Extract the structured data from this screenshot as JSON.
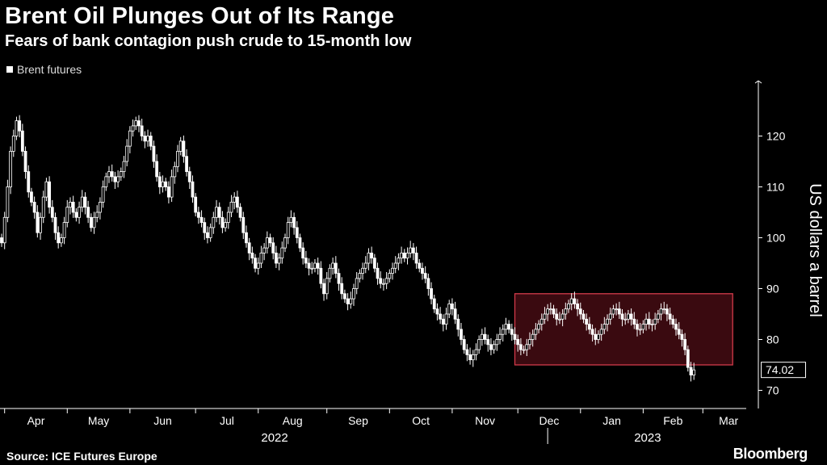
{
  "header": {
    "title": "Brent Oil Plunges Out of Its Range",
    "subtitle": "Fears of bank contagion push crude to 15-month low"
  },
  "footer": {
    "source": "Source: ICE Futures Europe",
    "brand": "Bloomberg"
  },
  "colors": {
    "background": "#000000",
    "candle": "#ffffff",
    "range_fill": "#3a0a10",
    "range_border": "#d23a4a"
  },
  "chart_data": {
    "type": "line",
    "title": "Brent Oil Plunges Out of Its Range",
    "subtitle": "Fears of bank contagion push crude to 15-month low",
    "legend": [
      "Brent futures"
    ],
    "legend_placement": "top-left",
    "ylabel": "US dollars a barrel",
    "y_axis_side": "right",
    "ylim": [
      66,
      130
    ],
    "yticks": [
      70,
      80,
      90,
      100,
      110,
      120
    ],
    "grid": false,
    "months": [
      {
        "label": "Apr",
        "start": 1
      },
      {
        "label": "May",
        "start": 22
      },
      {
        "label": "Jun",
        "start": 43
      },
      {
        "label": "Jul",
        "start": 65
      },
      {
        "label": "Aug",
        "start": 86
      },
      {
        "label": "Sep",
        "start": 109
      },
      {
        "label": "Oct",
        "start": 130
      },
      {
        "label": "Nov",
        "start": 151
      },
      {
        "label": "Dec",
        "start": 173
      },
      {
        "label": "Jan",
        "start": 194
      },
      {
        "label": "Feb",
        "start": 215
      },
      {
        "label": "Mar",
        "start": 235
      }
    ],
    "years": [
      {
        "label": "2022",
        "from": 0,
        "to": 183
      },
      {
        "label": "2023",
        "from": 183,
        "to": 250
      }
    ],
    "series": [
      {
        "name": "Brent futures",
        "chart_style": "candlestick",
        "x_index_start": 0,
        "close": [
          99,
          104,
          110,
          117,
          120,
          123,
          121,
          117,
          113,
          109,
          107,
          105,
          101,
          104,
          108,
          111,
          106,
          104,
          101,
          99,
          100,
          103,
          106,
          107,
          105,
          104,
          106,
          108,
          106,
          104,
          102,
          104,
          105,
          107,
          110,
          112,
          113,
          112,
          111,
          112,
          113,
          115,
          118,
          121,
          122,
          123,
          122,
          120,
          119,
          120,
          118,
          115,
          112,
          110,
          111,
          110,
          108,
          112,
          114,
          117,
          119,
          116,
          113,
          111,
          108,
          105,
          104,
          103,
          101,
          100,
          102,
          104,
          106,
          104,
          102,
          103,
          105,
          107,
          108,
          106,
          104,
          101,
          99,
          97,
          96,
          94,
          95,
          97,
          98,
          100,
          99,
          97,
          95,
          96,
          98,
          100,
          103,
          104,
          102,
          100,
          98,
          96,
          95,
          94,
          94,
          95,
          94,
          91,
          89,
          92,
          94,
          95,
          93,
          91,
          89,
          88,
          87,
          88,
          90,
          92,
          93,
          94,
          95,
          97,
          96,
          94,
          92,
          91,
          91,
          92,
          93,
          94,
          95,
          96,
          97,
          96,
          97,
          98,
          97,
          95,
          94,
          93,
          92,
          90,
          88,
          86,
          85,
          84,
          83,
          85,
          87,
          86,
          84,
          82,
          80,
          78,
          77,
          76,
          77,
          78,
          80,
          81,
          80,
          79,
          78,
          79,
          80,
          81,
          82,
          83,
          82,
          81,
          80,
          79,
          78,
          78,
          79,
          80,
          81,
          82,
          83,
          84,
          85,
          86,
          86,
          85,
          84,
          84,
          85,
          86,
          87,
          88,
          87,
          86,
          85,
          84,
          83,
          82,
          81,
          80,
          81,
          82,
          83,
          84,
          85,
          86,
          86,
          85,
          84,
          84,
          85,
          84,
          83,
          82,
          82,
          83,
          84,
          83,
          83,
          84,
          85,
          86,
          86,
          85,
          84,
          83,
          82,
          81,
          80,
          78,
          74.5,
          73,
          74.02
        ],
        "range_band": {
          "from_index": 172,
          "to_index": 245,
          "low": 75,
          "high": 89
        },
        "last_value_label": "74.02"
      }
    ]
  }
}
